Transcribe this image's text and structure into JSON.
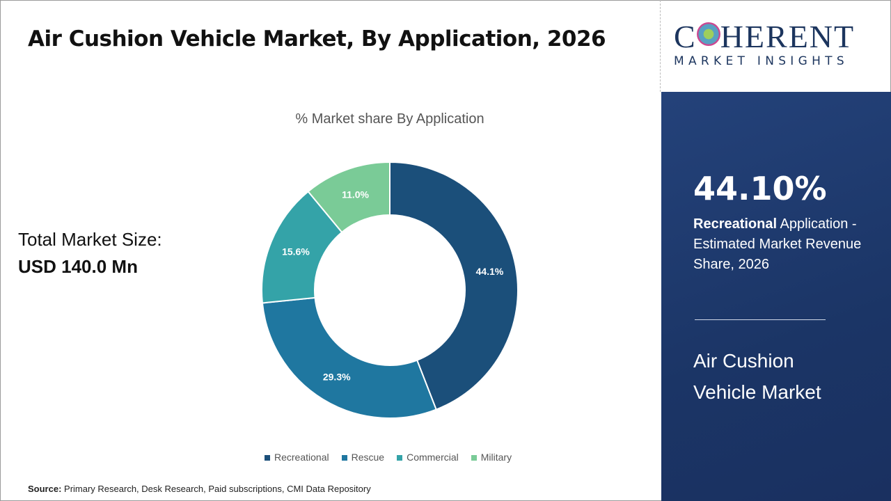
{
  "title": "Air Cushion Vehicle Market, By Application, 2026",
  "total_market": {
    "label": "Total Market Size:",
    "value": "USD 140.0 Mn"
  },
  "logo": {
    "line1": "COHERENT",
    "line2": "MARKET INSIGHTS"
  },
  "highlight": {
    "percent": "44.10%",
    "bold": "Recreational",
    "text": " Application - Estimated Market Revenue Share, 2026",
    "market_name": "Air Cushion Vehicle Market",
    "panel_color": "#1b3566"
  },
  "source": {
    "label": "Source:",
    "text": " Primary Research, Desk Research, Paid subscriptions, CMI Data Repository"
  },
  "chart_data": {
    "type": "pie",
    "subtype": "donut",
    "title": "% Market share By Application",
    "categories": [
      "Recreational",
      "Rescue",
      "Commercial",
      "Military"
    ],
    "values": [
      44.1,
      29.3,
      15.6,
      11.0
    ],
    "labels": [
      "44.1%",
      "29.3%",
      "15.6%",
      "11.0%"
    ],
    "colors": [
      "#1b4f7a",
      "#1f77a0",
      "#34a3a8",
      "#7acb97"
    ],
    "legend": "bottom"
  }
}
